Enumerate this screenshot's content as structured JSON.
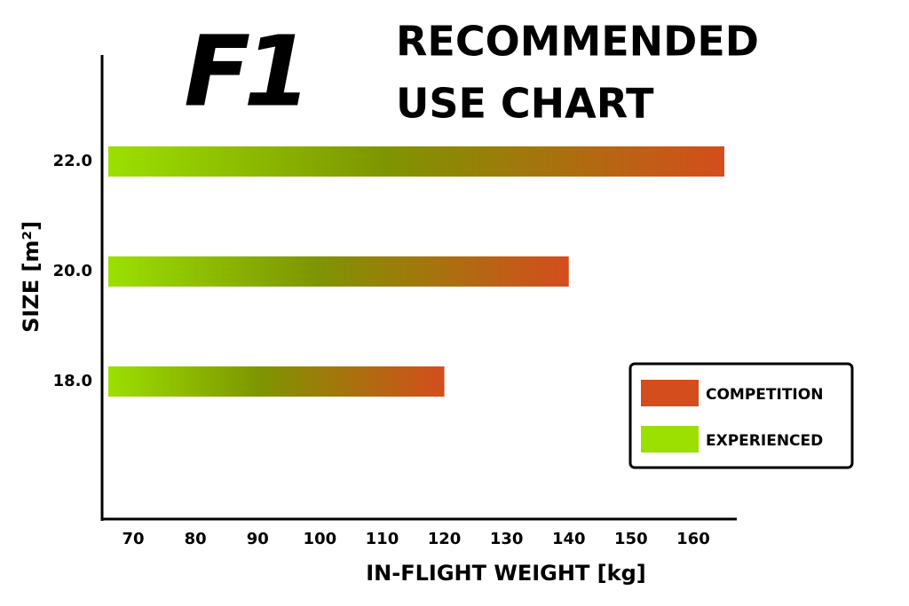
{
  "chart_data": {
    "type": "range-bar",
    "logo": "F1",
    "title_lines": [
      "RECOMMENDED",
      "USE CHART"
    ],
    "x_label": "IN-FLIGHT WEIGHT [kg]",
    "y_label": "SIZE [m²]",
    "categories": [
      "22.0",
      "20.0",
      "18.0"
    ],
    "starts": [
      66,
      66,
      66
    ],
    "values": [
      165,
      140,
      120
    ],
    "xlim": [
      65,
      167
    ],
    "xticks": [
      70,
      80,
      90,
      100,
      110,
      120,
      130,
      140,
      150,
      160
    ],
    "legend": [
      {
        "name": "COMPETITION",
        "color": "#d44d1c"
      },
      {
        "name": "EXPERIENCED",
        "color": "#9be000"
      }
    ],
    "legend_position": "right"
  }
}
